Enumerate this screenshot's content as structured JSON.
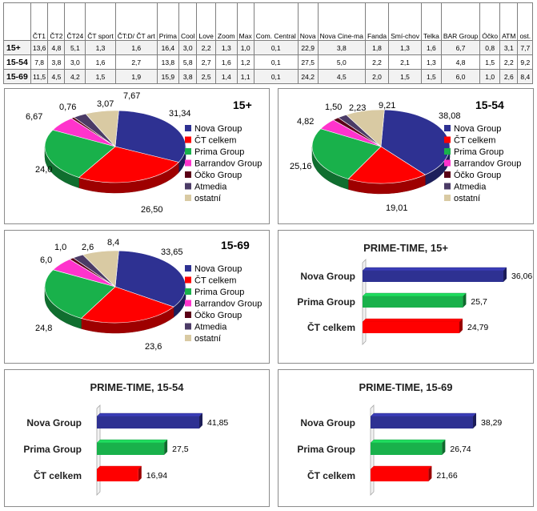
{
  "table": {
    "columns": [
      "ČT1",
      "ČT2",
      "ČT24",
      "ČT sport",
      "ČT:D/ ČT art",
      "Prima",
      "Cool",
      "Love",
      "Zoom",
      "Max",
      "Com. Central",
      "Nova",
      "Nova Cine-ma",
      "Fanda",
      "Smí-chov",
      "Telka",
      "BAR Group",
      "Óčko",
      "ATM",
      "ost."
    ],
    "rows": [
      {
        "label": "15+",
        "values": [
          "13,6",
          "4,8",
          "5,1",
          "1,3",
          "1,6",
          "16,4",
          "3,0",
          "2,2",
          "1,3",
          "1,0",
          "0,1",
          "22,9",
          "3,8",
          "1,8",
          "1,3",
          "1,6",
          "6,7",
          "0,8",
          "3,1",
          "7,7"
        ]
      },
      {
        "label": "15-54",
        "values": [
          "7,8",
          "3,8",
          "3,0",
          "1,6",
          "2,7",
          "13,8",
          "5,8",
          "2,7",
          "1,6",
          "1,2",
          "0,1",
          "27,5",
          "5,0",
          "2,2",
          "2,1",
          "1,3",
          "4,8",
          "1,5",
          "2,2",
          "9,2"
        ]
      },
      {
        "label": "15-69",
        "values": [
          "11,5",
          "4,5",
          "4,2",
          "1,5",
          "1,9",
          "15,9",
          "3,8",
          "2,5",
          "1,4",
          "1,1",
          "0,1",
          "24,2",
          "4,5",
          "2,0",
          "1,5",
          "1,5",
          "6,0",
          "1,0",
          "2,6",
          "8,4"
        ]
      }
    ]
  },
  "colors": {
    "nova": "#2e3192",
    "ct": "#ff0000",
    "prima": "#19b14b",
    "barrandov": "#ff33cc",
    "ocko": "#5a0016",
    "atmedia": "#4b3b66",
    "ostatni": "#d9caa3"
  },
  "chart_data": [
    {
      "type": "pie",
      "title": "15+",
      "legend": [
        "Nova Group",
        "ČT celkem",
        "Prima Group",
        "Barrandov Group",
        "Óčko Group",
        "Atmedia",
        "ostatní"
      ],
      "values": [
        31.34,
        26.5,
        24.0,
        6.67,
        0.76,
        3.07,
        7.67
      ],
      "labels": [
        "31,34",
        "26,50",
        "24,0",
        "6,67",
        "0,76",
        "3,07",
        "7,67"
      ]
    },
    {
      "type": "pie",
      "title": "15-54",
      "legend": [
        "Nova Group",
        "ČT celkem",
        "Prima Group",
        "Barrandov Group",
        "Óčko Group",
        "Atmedia",
        "ostatní"
      ],
      "values": [
        38.08,
        19.01,
        25.16,
        4.82,
        1.5,
        2.23,
        9.21
      ],
      "labels": [
        "38,08",
        "19,01",
        "25,16",
        "4,82",
        "1,50",
        "2,23",
        "9,21"
      ]
    },
    {
      "type": "pie",
      "title": "15-69",
      "legend": [
        "Nova Group",
        "ČT celkem",
        "Prima Group",
        "Barrandov Group",
        "Óčko Group",
        "Atmedia",
        "ostatní"
      ],
      "values": [
        33.65,
        23.6,
        24.8,
        6.0,
        1.0,
        2.6,
        8.4
      ],
      "labels": [
        "33,65",
        "23,6",
        "24,8",
        "6,0",
        "1,0",
        "2,6",
        "8,4"
      ]
    },
    {
      "type": "bar",
      "orientation": "horizontal",
      "title": "PRIME-TIME, 15+",
      "categories": [
        "Nova Group",
        "Prima Group",
        "ČT celkem"
      ],
      "values": [
        36.06,
        25.7,
        24.79
      ],
      "labels": [
        "36,06",
        "25,7",
        "24,79"
      ]
    },
    {
      "type": "bar",
      "orientation": "horizontal",
      "title": "PRIME-TIME, 15-54",
      "categories": [
        "Nova Group",
        "Prima Group",
        "ČT celkem"
      ],
      "values": [
        41.85,
        27.5,
        16.94
      ],
      "labels": [
        "41,85",
        "27,5",
        "16,94"
      ]
    },
    {
      "type": "bar",
      "orientation": "horizontal",
      "title": "PRIME-TIME, 15-69",
      "categories": [
        "Nova Group",
        "Prima Group",
        "ČT celkem"
      ],
      "values": [
        38.29,
        26.74,
        21.66
      ],
      "labels": [
        "38,29",
        "26,74",
        "21,66"
      ]
    }
  ]
}
